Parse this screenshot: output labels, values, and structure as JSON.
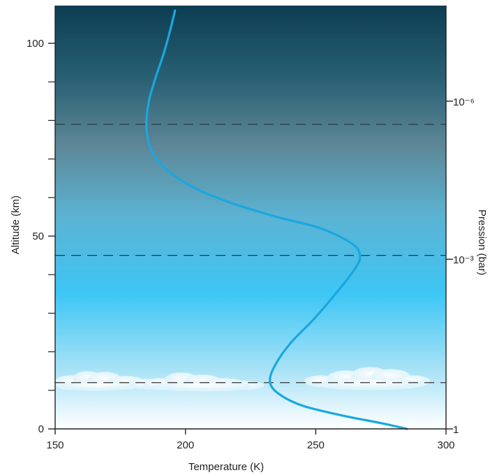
{
  "chart_data": {
    "type": "line",
    "title": "",
    "xlabel": "Temperature (K)",
    "ylabel": "Altitude (km)",
    "y2label": "Pression (bar)",
    "xlim": [
      150,
      300
    ],
    "ylim": [
      0,
      109
    ],
    "x_ticks": [
      150,
      200,
      250,
      300
    ],
    "x_tick_labels": [
      "150",
      "200",
      "250",
      "300"
    ],
    "y_ticks_labeled": [
      0,
      50,
      100
    ],
    "y_tick_labels": [
      "0",
      "50",
      "100"
    ],
    "y_minor_ticks": [
      10,
      20,
      30,
      40,
      60,
      70,
      80,
      90
    ],
    "y2_ticks": [
      {
        "altitude": 0,
        "label": "1"
      },
      {
        "altitude": 44,
        "label": "10⁻³"
      },
      {
        "altitude": 85,
        "label": "10⁻⁶"
      }
    ],
    "dashed_lines_altitude": [
      12,
      45,
      79
    ],
    "cloud_layer_altitude": 12,
    "series": [
      {
        "color": "#1aa7e0",
        "points": [
          [
            285,
            0
          ],
          [
            275,
            1.5
          ],
          [
            260,
            3.5
          ],
          [
            245,
            6
          ],
          [
            236,
            9
          ],
          [
            232.5,
            12
          ],
          [
            234,
            16
          ],
          [
            240,
            22
          ],
          [
            250,
            29
          ],
          [
            260,
            37
          ],
          [
            265.5,
            42
          ],
          [
            267,
            45
          ],
          [
            264,
            48
          ],
          [
            252,
            52
          ],
          [
            235,
            55
          ],
          [
            218,
            58.5
          ],
          [
            205,
            62
          ],
          [
            195,
            66
          ],
          [
            189,
            70
          ],
          [
            186,
            74
          ],
          [
            185,
            79
          ],
          [
            186,
            85
          ],
          [
            188.5,
            91
          ],
          [
            191.5,
            97
          ],
          [
            194,
            103
          ],
          [
            196,
            108.5
          ]
        ]
      }
    ],
    "background_gradient": [
      "#0d3d52",
      "#5b8798",
      "#3cc6f5",
      "#ffffff"
    ]
  }
}
